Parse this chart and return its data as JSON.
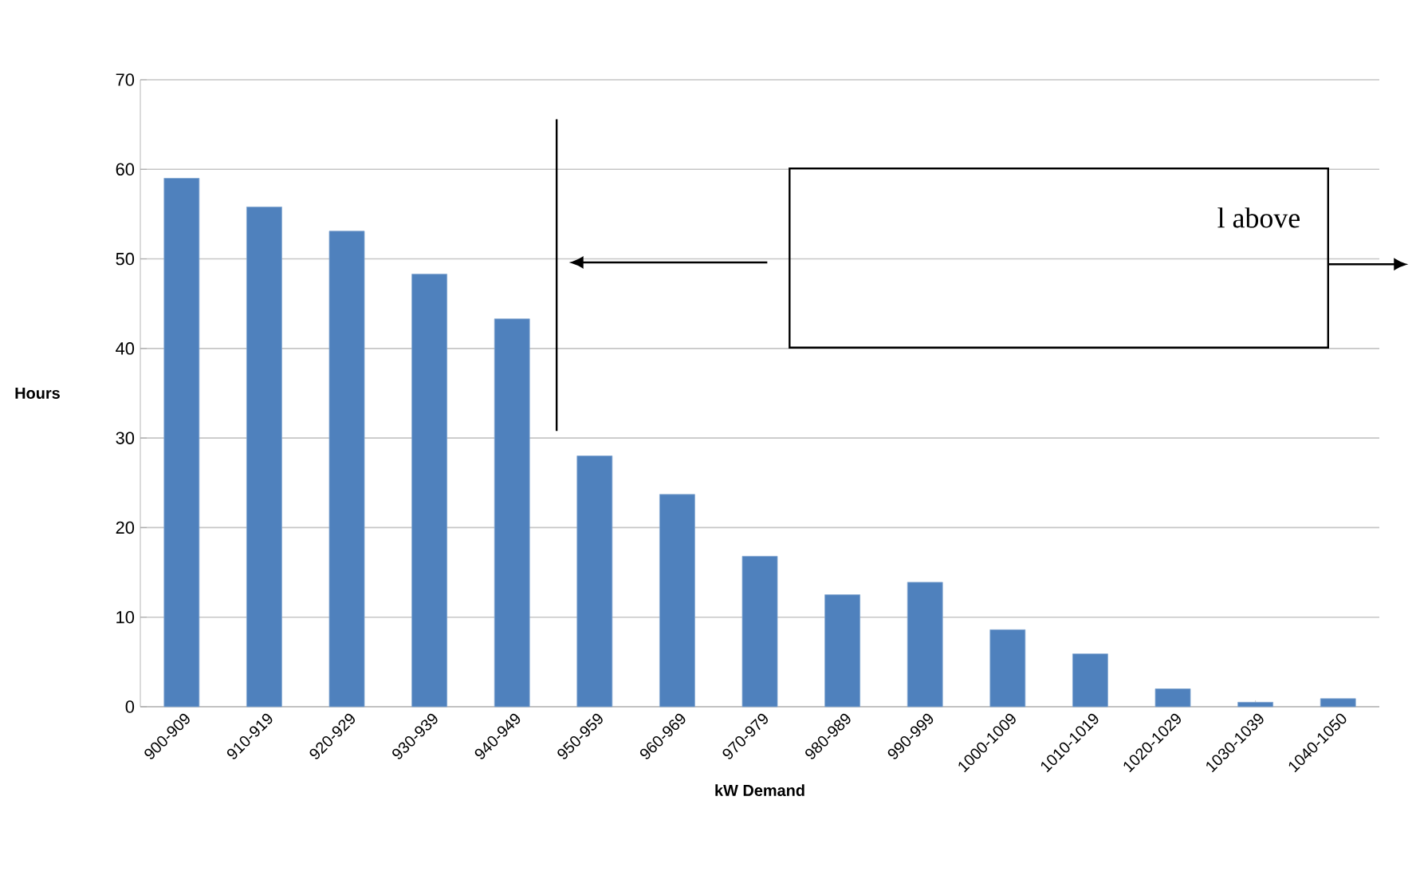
{
  "chart_data": {
    "type": "bar",
    "categories": [
      "900-909",
      "910-919",
      "920-929",
      "930-939",
      "940-949",
      "950-959",
      "960-969",
      "970-979",
      "980-989",
      "990-999",
      "1000-1009",
      "1010-1019",
      "1020-1029",
      "1030-1039",
      "1040-1050"
    ],
    "values": [
      59,
      55.8,
      53.1,
      48.3,
      43.3,
      28,
      23.7,
      16.8,
      12.5,
      13.9,
      8.6,
      5.9,
      2,
      0.5,
      0.9
    ],
    "color": "#4f81bd",
    "xlabel": "kW Demand",
    "ylabel": "Hours",
    "ylim": [
      0,
      70
    ],
    "yticks": [
      0,
      10,
      20,
      30,
      40,
      50,
      60,
      70
    ],
    "grid": "y",
    "annotations": [
      "l  above"
    ]
  }
}
